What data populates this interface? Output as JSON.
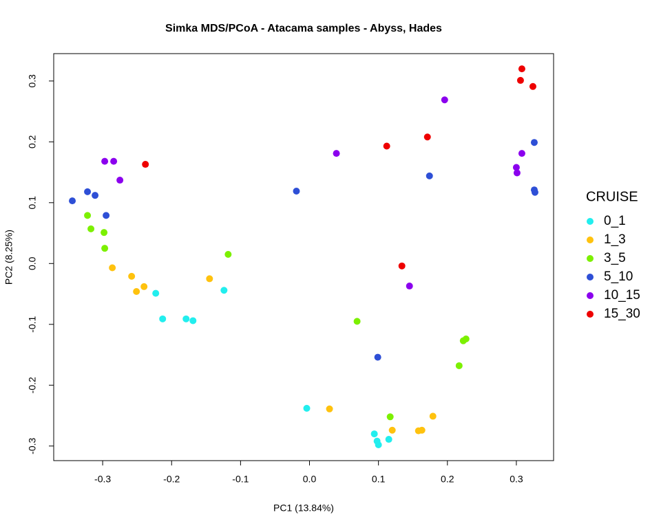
{
  "chart_data": {
    "type": "scatter",
    "title": "Simka MDS/PCoA - Atacama samples - Abyss, Hades",
    "x_label": "PC1 (13.84%)",
    "y_label": "PC2 (8.25%)",
    "legend_title": "CRUISE",
    "xlim": [
      -0.371,
      0.354
    ],
    "ylim": [
      -0.324,
      0.345
    ],
    "xticks": [
      -0.3,
      -0.2,
      -0.1,
      {
        "value": 0,
        "label": "0.0"
      },
      0.1,
      0.2,
      0.3
    ],
    "yticks": [
      -0.3,
      -0.2,
      -0.1,
      {
        "value": 0,
        "label": "0.0"
      },
      0.1,
      0.2,
      0.3
    ],
    "series": [
      {
        "name": "0_1",
        "color": "#22eeee",
        "x": [
          -0.223,
          -0.213,
          -0.179,
          -0.169,
          -0.124,
          -0.004,
          0.094,
          0.098,
          0.1,
          0.115
        ],
        "values": [
          -0.049,
          -0.091,
          -0.091,
          -0.094,
          -0.044,
          -0.238,
          -0.28,
          -0.292,
          -0.298,
          -0.289
        ]
      },
      {
        "name": "1_3",
        "color": "#ffc20e",
        "x": [
          -0.286,
          -0.258,
          -0.251,
          -0.24,
          -0.145,
          0.029,
          0.12,
          0.158,
          0.163,
          0.179
        ],
        "values": [
          -0.007,
          -0.021,
          -0.046,
          -0.038,
          -0.025,
          -0.239,
          -0.274,
          -0.275,
          -0.274,
          -0.251
        ]
      },
      {
        "name": "3_5",
        "color": "#7cf000",
        "x": [
          -0.322,
          -0.317,
          -0.298,
          -0.297,
          -0.118,
          0.069,
          0.117,
          0.217,
          0.223,
          0.227
        ],
        "values": [
          0.079,
          0.057,
          0.051,
          0.025,
          0.015,
          -0.095,
          -0.252,
          -0.168,
          -0.127,
          -0.124
        ]
      },
      {
        "name": "5_10",
        "color": "#2e4fd6",
        "x": [
          -0.344,
          -0.322,
          -0.311,
          -0.295,
          -0.019,
          0.099,
          0.174,
          0.326,
          0.326,
          0.327
        ],
        "values": [
          0.103,
          0.118,
          0.112,
          0.079,
          0.119,
          -0.154,
          0.144,
          0.199,
          0.121,
          0.117
        ]
      },
      {
        "name": "10_15",
        "color": "#8b00ee",
        "x": [
          -0.297,
          -0.284,
          -0.275,
          0.039,
          0.145,
          0.196,
          0.3,
          0.301,
          0.308
        ],
        "values": [
          0.168,
          0.168,
          0.137,
          0.181,
          -0.037,
          0.269,
          0.158,
          0.149,
          0.181
        ]
      },
      {
        "name": "15_30",
        "color": "#ee0000",
        "x": [
          -0.238,
          0.112,
          0.171,
          0.134,
          0.308,
          0.306,
          0.324
        ],
        "values": [
          0.163,
          0.193,
          0.208,
          -0.004,
          0.32,
          0.301,
          0.291
        ]
      }
    ]
  }
}
